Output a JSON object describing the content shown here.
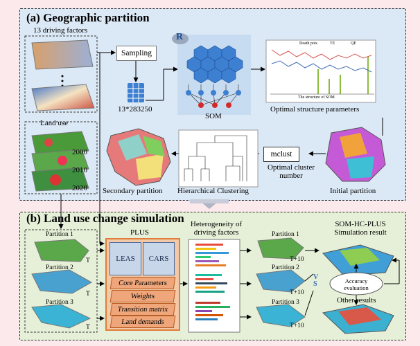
{
  "panel_a": {
    "title": "(a) Geographic partition",
    "driving_factors_label": "13 driving factors",
    "sampling_label": "Sampling",
    "matrix_label": "13*283250",
    "som_label": "SOM",
    "optimal_structure_label": "Optimal structure parameters",
    "land_use_label": "Land use",
    "years": [
      "2000",
      "2010",
      "2020"
    ],
    "mclust_label": "mclust",
    "optimal_cluster_label": "Optimal cluster number",
    "hc_label": "Hierarchical Clustering",
    "secondary_label": "Secondary partition",
    "initial_label": "Initial partition",
    "r_logo": "R"
  },
  "panel_b": {
    "title": "(b) Land use change simulation",
    "partitions_left": [
      "Partition 1",
      "Partition 2",
      "Partition 3"
    ],
    "t_label": "T",
    "plus_label": "PLUS",
    "leas_label": "LEAS",
    "cars_label": "CARS",
    "core_params_label": "Core Parameters",
    "weights_label": "Weights",
    "transition_label": "Transition matrix",
    "land_demands_label": "Land demands",
    "heterogeneity_label": "Heterogeneity of driving factors",
    "partitions_right": [
      "Partition 1",
      "Partition 2",
      "Partition 3"
    ],
    "t10_label": "T+10",
    "som_hc_plus_label": "SOM-HC-PLUS Simulation result",
    "accuracy_label": "Accuracy evaluation",
    "vs_label": "V S",
    "other_results_label": "Other results"
  },
  "chart_inset": {
    "legend": [
      "Death pots",
      "TE",
      "QE"
    ],
    "xlabel": "The structure of SOM",
    "colors": {
      "death": "#8bbd3c",
      "te": "#d9534f",
      "qe": "#3d6bb5"
    }
  },
  "colors": {
    "panel_a_bg": "#dbe8f5",
    "panel_b_bg": "#e6f0d8",
    "plus_border": "#e07b39",
    "hex_blue": "#3d7fd0",
    "red_node": "#d52a2a"
  }
}
